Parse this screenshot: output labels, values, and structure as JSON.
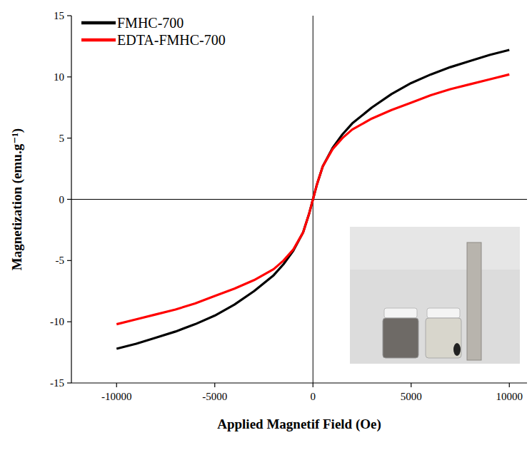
{
  "chart_data": {
    "type": "line",
    "x_label": "Applied Magnetif Field (Oe)",
    "y_label": "Magnetization (emu.g⁻¹)",
    "x": [
      -10000,
      -9000,
      -8000,
      -7000,
      -6000,
      -5000,
      -4000,
      -3000,
      -2000,
      -1500,
      -1000,
      -500,
      -200,
      0,
      200,
      500,
      1000,
      1500,
      2000,
      3000,
      4000,
      5000,
      6000,
      7000,
      8000,
      9000,
      10000
    ],
    "series": [
      {
        "name": "FMHC-700",
        "color": "#000000",
        "values": [
          -12.2,
          -11.8,
          -11.3,
          -10.8,
          -10.2,
          -9.5,
          -8.6,
          -7.5,
          -6.2,
          -5.3,
          -4.2,
          -2.7,
          -1.2,
          0,
          1.2,
          2.7,
          4.2,
          5.3,
          6.2,
          7.5,
          8.6,
          9.5,
          10.2,
          10.8,
          11.3,
          11.8,
          12.2
        ]
      },
      {
        "name": "EDTA-FMHC-700",
        "color": "#ff0000",
        "values": [
          -10.2,
          -9.8,
          -9.4,
          -9.0,
          -8.5,
          -7.9,
          -7.3,
          -6.6,
          -5.7,
          -5.0,
          -4.1,
          -2.7,
          -1.2,
          0,
          1.2,
          2.7,
          4.1,
          5.0,
          5.7,
          6.6,
          7.3,
          7.9,
          8.5,
          9.0,
          9.4,
          9.8,
          10.2
        ]
      }
    ],
    "xlim": [
      -12300,
      10900
    ],
    "xticks": [
      -10000,
      -5000,
      0,
      5000,
      10000
    ],
    "ylim": [
      -15,
      15
    ],
    "yticks": [
      -15,
      -10,
      -5,
      0,
      5,
      10,
      15
    ],
    "grid": false,
    "legend": "upper left"
  }
}
